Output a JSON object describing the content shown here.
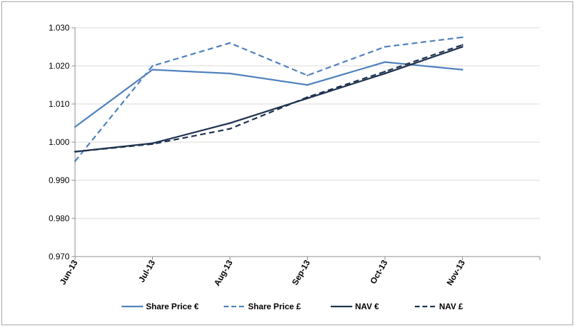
{
  "chart_data": {
    "type": "line",
    "title": "",
    "xlabel": "",
    "ylabel": "",
    "x": [
      "Jun-13",
      "Jul-13",
      "Aug-13",
      "Sep-13",
      "Oct-13",
      "Nov-13"
    ],
    "ylim": [
      0.97,
      1.03
    ],
    "yticks": [
      "0.970",
      "0.980",
      "0.990",
      "1.000",
      "1.010",
      "1.020",
      "1.030"
    ],
    "grid": "horizontal",
    "legend_position": "bottom",
    "series": [
      {
        "name": "Share Price €",
        "color": "#4f81bd",
        "dash": "solid",
        "values": [
          1.004,
          1.019,
          1.018,
          1.015,
          1.021,
          1.019
        ]
      },
      {
        "name": "Share Price £",
        "color": "#4f81bd",
        "dash": "dashed",
        "values": [
          0.995,
          1.02,
          1.026,
          1.0175,
          1.025,
          1.0275
        ]
      },
      {
        "name": "NAV €",
        "color": "#1f3350",
        "dash": "solid",
        "values": [
          0.9975,
          0.9997,
          1.005,
          1.0115,
          1.018,
          1.025
        ]
      },
      {
        "name": "NAV £",
        "color": "#1f3350",
        "dash": "dashed",
        "values": [
          0.9975,
          0.9995,
          1.0035,
          1.0118,
          1.0185,
          1.0255
        ]
      }
    ]
  }
}
